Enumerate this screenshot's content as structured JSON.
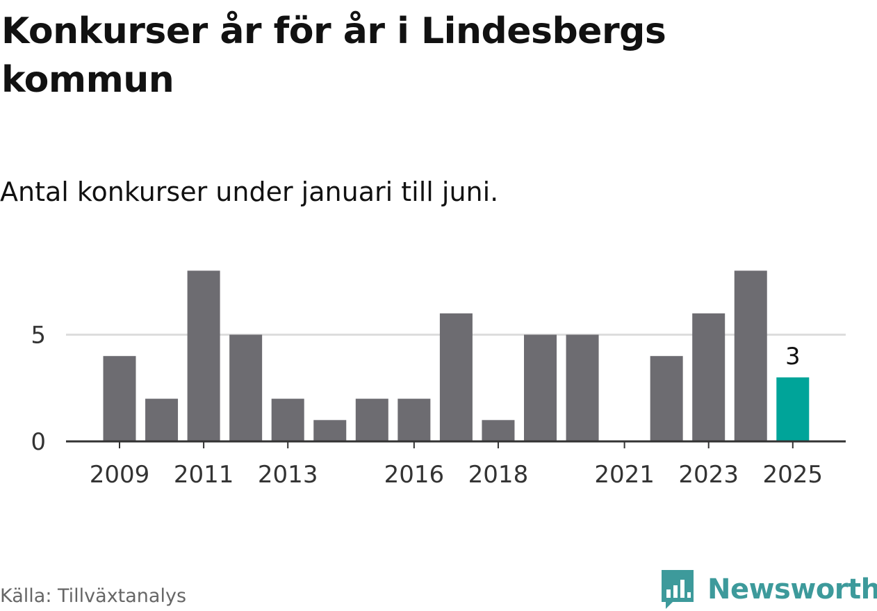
{
  "title": "Konkurser år för år i Lindesbergs kommun",
  "subtitle": "Antal konkurser under januari till juni.",
  "source": "Källa: Tillväxtanalys",
  "brand": {
    "name": "Newsworthy",
    "icon": "newsworthy-logo-icon",
    "color": "#3d9a9b"
  },
  "chart_data": {
    "type": "bar",
    "x": [
      2009,
      2010,
      2011,
      2012,
      2013,
      2014,
      2015,
      2016,
      2017,
      2018,
      2019,
      2020,
      2021,
      2022,
      2023,
      2024,
      2025
    ],
    "values": [
      4,
      2,
      8,
      5,
      2,
      1,
      2,
      2,
      6,
      1,
      5,
      5,
      0,
      4,
      6,
      8,
      3
    ],
    "xticks": [
      2009,
      2011,
      2013,
      2016,
      2018,
      2021,
      2023,
      2025
    ],
    "yticks": [
      0,
      5
    ],
    "ylim": [
      0,
      8
    ],
    "grid": true,
    "annotations": [
      {
        "x": 2025,
        "label": "3"
      }
    ],
    "colors": {
      "bar": "#6d6c71",
      "highlight": "#00a499",
      "grid": "#dddddd",
      "axis": "#333333",
      "tick_text": "#333333"
    }
  }
}
